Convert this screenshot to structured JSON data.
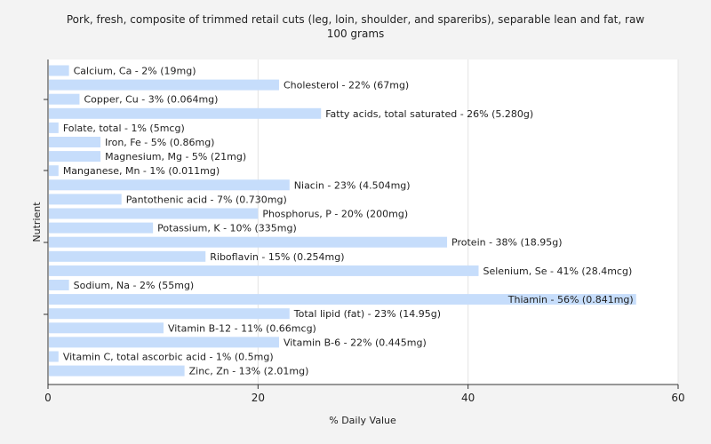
{
  "chart_data": {
    "type": "bar",
    "orientation": "horizontal",
    "title_line1": "Pork, fresh, composite of trimmed retail cuts (leg, loin, shoulder, and spareribs), separable lean and fat, raw",
    "title_line2": "100 grams",
    "xlabel": "% Daily Value",
    "ylabel": "Nutrient",
    "xlim": [
      0,
      60
    ],
    "xticks": [
      0,
      20,
      40,
      60
    ],
    "grid": "vertical",
    "bar_color": "#c6ddfb",
    "categories": [
      "Calcium, Ca - 2% (19mg)",
      "Cholesterol - 22% (67mg)",
      "Copper, Cu - 3% (0.064mg)",
      "Fatty acids, total saturated - 26% (5.280g)",
      "Folate, total - 1% (5mcg)",
      "Iron, Fe - 5% (0.86mg)",
      "Magnesium, Mg - 5% (21mg)",
      "Manganese, Mn - 1% (0.011mg)",
      "Niacin - 23% (4.504mg)",
      "Pantothenic acid - 7% (0.730mg)",
      "Phosphorus, P - 20% (200mg)",
      "Potassium, K - 10% (335mg)",
      "Protein - 38% (18.95g)",
      "Riboflavin - 15% (0.254mg)",
      "Selenium, Se - 41% (28.4mcg)",
      "Sodium, Na - 2% (55mg)",
      "Thiamin - 56% (0.841mg)",
      "Total lipid (fat) - 23% (14.95g)",
      "Vitamin B-12 - 11% (0.66mcg)",
      "Vitamin B-6 - 22% (0.445mg)",
      "Vitamin C, total ascorbic acid - 1% (0.5mg)",
      "Zinc, Zn - 13% (2.01mg)"
    ],
    "values": [
      2,
      22,
      3,
      26,
      1,
      5,
      5,
      1,
      23,
      7,
      20,
      10,
      38,
      15,
      41,
      2,
      56,
      23,
      11,
      22,
      1,
      13
    ]
  }
}
